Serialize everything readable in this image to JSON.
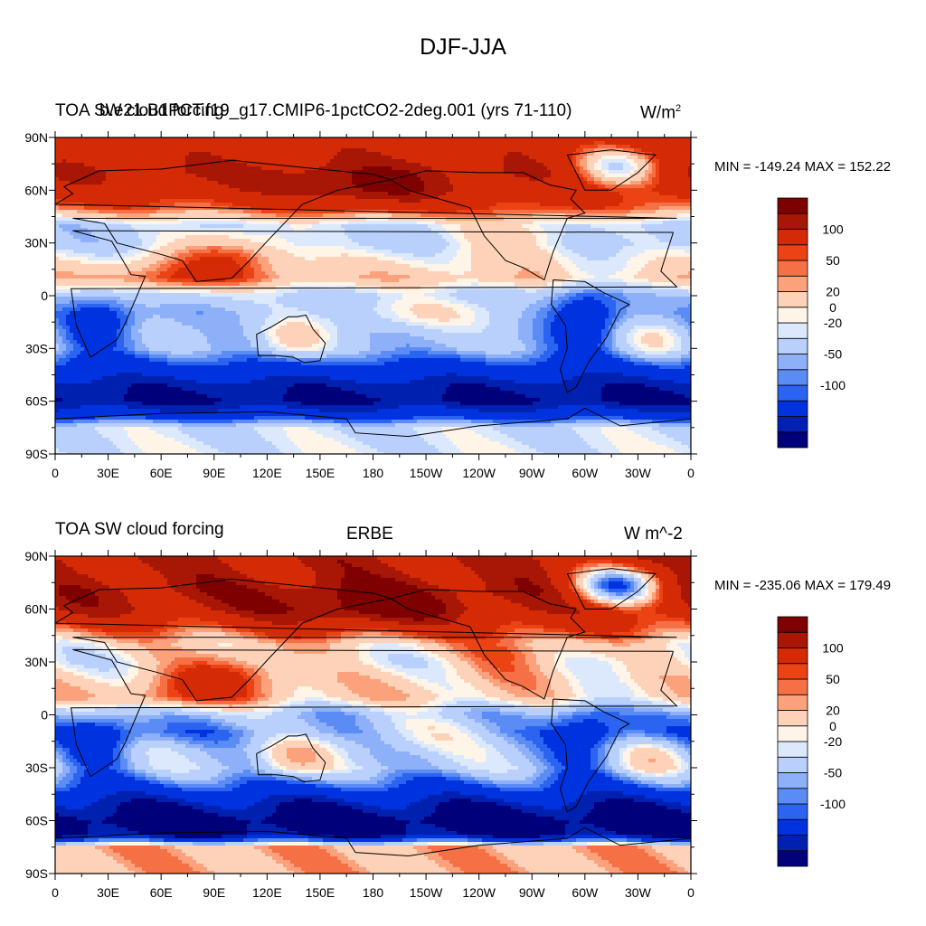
{
  "title": "DJF-JJA",
  "palette": [
    "#00007a",
    "#0020b0",
    "#0033e0",
    "#2a64f0",
    "#5b8cf5",
    "#8db0f8",
    "#b8d0fb",
    "#dce9fd",
    "#fff4e8",
    "#fdd2b8",
    "#fba27d",
    "#f67046",
    "#ec4314",
    "#d42a05",
    "#a81605",
    "#7f0000"
  ],
  "colorbar_labels": [
    "-100",
    "-50",
    "-20",
    "0",
    "20",
    "50",
    "100"
  ],
  "chart_data": [
    {
      "type": "heatmap",
      "field": "TOA SW cloud forcing, DJF minus JJA",
      "left_label": "TOA SW cloud forcing",
      "center_label": "b.e21.B1PCT.f19_g17.CMIP6-1pctCO2-2deg.001 (yrs 71-110)",
      "units": "W/m",
      "units_sup": "2",
      "min_max_text": "MIN = -149.24 MAX = 152.22",
      "min": -149.24,
      "max": 152.22,
      "contour_levels": [
        -120,
        -100,
        -80,
        -60,
        -50,
        -40,
        -30,
        -20,
        -10,
        0,
        10,
        20,
        30,
        40,
        50,
        60,
        80,
        100,
        120
      ],
      "xlabel": "",
      "ylabel": "",
      "x_ticks": [
        "0",
        "30E",
        "60E",
        "90E",
        "120E",
        "150E",
        "180",
        "150W",
        "120W",
        "90W",
        "60W",
        "30W",
        "0"
      ],
      "y_ticks": [
        "90N",
        "60N",
        "30N",
        "0",
        "30S",
        "60S",
        "90S"
      ],
      "xlim": [
        0,
        360
      ],
      "ylim": [
        -90,
        90
      ],
      "zonal_profile": [
        [
          -90,
          -5
        ],
        [
          -75,
          -10
        ],
        [
          -68,
          -80
        ],
        [
          -60,
          -125
        ],
        [
          -50,
          -110
        ],
        [
          -40,
          -70
        ],
        [
          -30,
          -30
        ],
        [
          -20,
          -25
        ],
        [
          -10,
          -30
        ],
        [
          0,
          -20
        ],
        [
          10,
          25
        ],
        [
          20,
          5
        ],
        [
          30,
          -20
        ],
        [
          40,
          -20
        ],
        [
          50,
          50
        ],
        [
          60,
          85
        ],
        [
          70,
          100
        ],
        [
          80,
          90
        ],
        [
          90,
          85
        ]
      ],
      "notable_values": {
        "north_pacific_60N": 130,
        "greenland": -5,
        "amazon": -90,
        "southern_ocean_60S": -125,
        "antarctica": -5
      }
    },
    {
      "type": "heatmap",
      "field": "TOA SW cloud forcing, DJF minus JJA",
      "left_label": "TOA SW cloud forcing",
      "center_label": "ERBE",
      "units": "W m^-2",
      "min_max_text": "MIN = -235.06 MAX = 179.49",
      "min": -235.06,
      "max": 179.49,
      "contour_levels": [
        -120,
        -100,
        -80,
        -60,
        -50,
        -40,
        -30,
        -20,
        -10,
        0,
        10,
        20,
        30,
        40,
        50,
        60,
        80,
        100,
        120
      ],
      "xlabel": "",
      "ylabel": "",
      "x_ticks": [
        "0",
        "30E",
        "60E",
        "90E",
        "120E",
        "150E",
        "180",
        "150W",
        "120W",
        "90W",
        "60W",
        "30W",
        "0"
      ],
      "y_ticks": [
        "90N",
        "60N",
        "30N",
        "0",
        "30S",
        "60S",
        "90S"
      ],
      "xlim": [
        0,
        360
      ],
      "ylim": [
        -90,
        90
      ],
      "zonal_profile": [
        [
          -90,
          30
        ],
        [
          -75,
          30
        ],
        [
          -68,
          -130
        ],
        [
          -60,
          -140
        ],
        [
          -50,
          -110
        ],
        [
          -40,
          -60
        ],
        [
          -30,
          -20
        ],
        [
          -20,
          -20
        ],
        [
          -10,
          -45
        ],
        [
          0,
          -30
        ],
        [
          10,
          20
        ],
        [
          20,
          15
        ],
        [
          30,
          0
        ],
        [
          40,
          10
        ],
        [
          50,
          60
        ],
        [
          60,
          100
        ],
        [
          70,
          110
        ],
        [
          80,
          100
        ],
        [
          90,
          100
        ]
      ],
      "notable_values": {
        "north_pacific_60N": 130,
        "greenland": -60,
        "amazon": -80,
        "southern_ocean_60S": -150,
        "antarctica": 30
      }
    }
  ]
}
